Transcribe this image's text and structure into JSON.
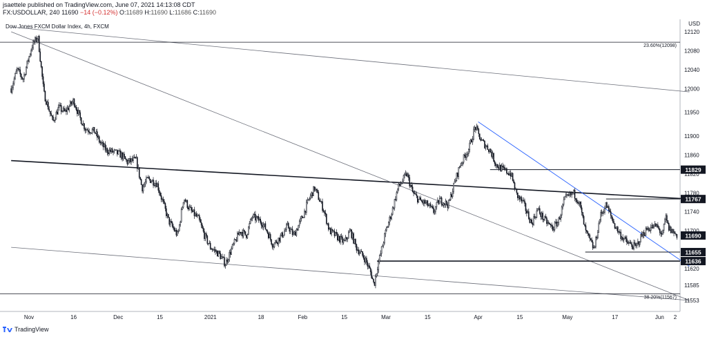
{
  "header": {
    "line1": "jsaettele published on TradingView.com, June 07, 2021 14:13:08 CDT",
    "symbol": "FX:USDOLLAR, 240",
    "last": "11690",
    "change": "−14 (−0.12%)",
    "o_label": "O:",
    "o_value": "11689",
    "h_label": "H:",
    "h_value": "11690",
    "l_label": "L:",
    "l_value": "11686",
    "c_label": "C:",
    "c_value": "11690"
  },
  "chart_title": "Dow Jones FXCM Dollar Index, 4h, FXCM",
  "footer": {
    "brand": "TradingView"
  },
  "colors": {
    "candle": "#131722",
    "trendline_thick": "#131722",
    "trendline_thin": "#6a6d78",
    "trendline_blue": "#2962ff",
    "grid_text": "#131722"
  },
  "chart_data": {
    "type": "line",
    "currency_label": "USD",
    "x_ticks": [
      "Nov",
      "16",
      "Dec",
      "15",
      "2021",
      "18",
      "Feb",
      "15",
      "Mar",
      "15",
      "Apr",
      "15",
      "May",
      "17",
      "Jun",
      "2"
    ],
    "y_ticks": [
      12120,
      12080,
      12040,
      12000,
      11950,
      11900,
      11860,
      11820,
      11780,
      11740,
      11700,
      11655,
      11620,
      11585,
      11553
    ],
    "y_range": [
      11553,
      12120
    ],
    "price_labels": [
      {
        "value": 11829,
        "label": "11829"
      },
      {
        "value": 11767,
        "label": "11767"
      },
      {
        "value": 11690,
        "label": "11690"
      },
      {
        "value": 11655,
        "label": "11655"
      },
      {
        "value": 11636,
        "label": "11636"
      }
    ],
    "fib_levels": [
      {
        "value": 12098,
        "label": "23.60%(12098)"
      },
      {
        "value": 11567,
        "label": "38.20%(11567)"
      }
    ],
    "price_path": [
      [
        "2020-10-26",
        12000
      ],
      [
        "2020-10-28",
        12040
      ],
      [
        "2020-10-30",
        12020
      ],
      [
        "2020-11-02",
        12090
      ],
      [
        "2020-11-04",
        12110
      ],
      [
        "2020-11-06",
        11990
      ],
      [
        "2020-11-09",
        11930
      ],
      [
        "2020-11-11",
        11960
      ],
      [
        "2020-11-13",
        11950
      ],
      [
        "2020-11-16",
        11975
      ],
      [
        "2020-11-18",
        11940
      ],
      [
        "2020-11-20",
        11915
      ],
      [
        "2020-11-23",
        11910
      ],
      [
        "2020-11-25",
        11885
      ],
      [
        "2020-11-27",
        11870
      ],
      [
        "2020-11-30",
        11865
      ],
      [
        "2020-12-02",
        11860
      ],
      [
        "2020-12-04",
        11845
      ],
      [
        "2020-12-07",
        11850
      ],
      [
        "2020-12-09",
        11790
      ],
      [
        "2020-12-11",
        11810
      ],
      [
        "2020-12-14",
        11800
      ],
      [
        "2020-12-16",
        11760
      ],
      [
        "2020-12-18",
        11720
      ],
      [
        "2020-12-21",
        11690
      ],
      [
        "2020-12-23",
        11770
      ],
      [
        "2020-12-25",
        11745
      ],
      [
        "2020-12-28",
        11725
      ],
      [
        "2020-12-30",
        11690
      ],
      [
        "2021-01-01",
        11665
      ],
      [
        "2021-01-04",
        11650
      ],
      [
        "2021-01-06",
        11630
      ],
      [
        "2021-01-08",
        11660
      ],
      [
        "2021-01-11",
        11700
      ],
      [
        "2021-01-13",
        11690
      ],
      [
        "2021-01-15",
        11730
      ],
      [
        "2021-01-18",
        11720
      ],
      [
        "2021-01-20",
        11700
      ],
      [
        "2021-01-22",
        11670
      ],
      [
        "2021-01-25",
        11690
      ],
      [
        "2021-01-27",
        11710
      ],
      [
        "2021-01-29",
        11690
      ],
      [
        "2021-02-01",
        11730
      ],
      [
        "2021-02-03",
        11765
      ],
      [
        "2021-02-05",
        11790
      ],
      [
        "2021-02-08",
        11745
      ],
      [
        "2021-02-10",
        11700
      ],
      [
        "2021-02-12",
        11690
      ],
      [
        "2021-02-15",
        11675
      ],
      [
        "2021-02-17",
        11700
      ],
      [
        "2021-02-19",
        11665
      ],
      [
        "2021-02-22",
        11640
      ],
      [
        "2021-02-24",
        11610
      ],
      [
        "2021-02-25",
        11585
      ],
      [
        "2021-02-26",
        11620
      ],
      [
        "2021-03-01",
        11700
      ],
      [
        "2021-03-03",
        11740
      ],
      [
        "2021-03-05",
        11790
      ],
      [
        "2021-03-08",
        11820
      ],
      [
        "2021-03-10",
        11780
      ],
      [
        "2021-03-12",
        11765
      ],
      [
        "2021-03-15",
        11755
      ],
      [
        "2021-03-17",
        11740
      ],
      [
        "2021-03-19",
        11765
      ],
      [
        "2021-03-22",
        11755
      ],
      [
        "2021-03-24",
        11800
      ],
      [
        "2021-03-26",
        11840
      ],
      [
        "2021-03-29",
        11875
      ],
      [
        "2021-03-31",
        11920
      ],
      [
        "2021-04-02",
        11890
      ],
      [
        "2021-04-05",
        11870
      ],
      [
        "2021-04-07",
        11840
      ],
      [
        "2021-04-09",
        11830
      ],
      [
        "2021-04-12",
        11820
      ],
      [
        "2021-04-14",
        11775
      ],
      [
        "2021-04-16",
        11760
      ],
      [
        "2021-04-19",
        11715
      ],
      [
        "2021-04-21",
        11745
      ],
      [
        "2021-04-23",
        11725
      ],
      [
        "2021-04-26",
        11705
      ],
      [
        "2021-04-28",
        11720
      ],
      [
        "2021-04-30",
        11765
      ],
      [
        "2021-05-03",
        11780
      ],
      [
        "2021-05-05",
        11760
      ],
      [
        "2021-05-07",
        11700
      ],
      [
        "2021-05-10",
        11660
      ],
      [
        "2021-05-12",
        11730
      ],
      [
        "2021-05-14",
        11755
      ],
      [
        "2021-05-17",
        11710
      ],
      [
        "2021-05-19",
        11690
      ],
      [
        "2021-05-21",
        11675
      ],
      [
        "2021-05-24",
        11665
      ],
      [
        "2021-05-26",
        11690
      ],
      [
        "2021-05-28",
        11705
      ],
      [
        "2021-05-31",
        11710
      ],
      [
        "2021-06-02",
        11690
      ],
      [
        "2021-06-03",
        11730
      ],
      [
        "2021-06-04",
        11705
      ],
      [
        "2021-06-07",
        11690
      ]
    ]
  }
}
